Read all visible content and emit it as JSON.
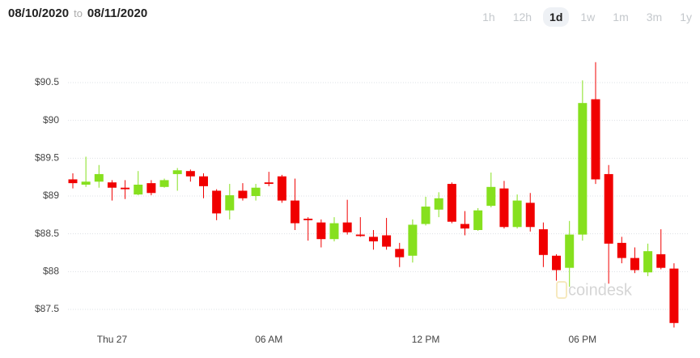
{
  "header": {
    "start_date": "08/10/2020",
    "separator": "to",
    "end_date": "08/11/2020"
  },
  "range_buttons": [
    "1h",
    "12h",
    "1d",
    "1w",
    "1m",
    "3m",
    "1y"
  ],
  "active_range": 2,
  "watermark": "coindesk",
  "chart_data": {
    "type": "candlestick",
    "categories": [
      null,
      null,
      null,
      "Thu 27",
      null,
      null,
      null,
      null,
      null,
      null,
      null,
      null,
      null,
      null,
      null,
      "06 AM",
      null,
      null,
      null,
      null,
      null,
      null,
      null,
      null,
      null,
      null,
      null,
      "12 PM",
      null,
      null,
      null,
      null,
      null,
      null,
      null,
      null,
      null,
      null,
      null,
      "06 PM",
      null,
      null,
      null,
      null,
      null,
      null,
      null
    ],
    "open": [
      89.22,
      89.15,
      89.19,
      89.18,
      89.11,
      89.02,
      89.17,
      89.12,
      89.29,
      89.33,
      89.26,
      89.07,
      88.81,
      89.07,
      89.0,
      89.18,
      89.26,
      88.94,
      88.7,
      88.65,
      88.43,
      88.65,
      88.49,
      88.46,
      88.48,
      88.3,
      88.21,
      88.63,
      88.82,
      89.16,
      88.63,
      88.55,
      88.87,
      89.1,
      88.59,
      88.91,
      88.56,
      88.21,
      88.05,
      88.49,
      90.28,
      89.29,
      88.38,
      88.18,
      87.99,
      88.23,
      88.04
    ],
    "high": [
      89.3,
      89.52,
      89.41,
      89.21,
      89.21,
      89.33,
      89.21,
      89.23,
      89.37,
      89.35,
      89.3,
      89.09,
      89.16,
      89.17,
      89.16,
      89.32,
      89.28,
      89.23,
      88.72,
      88.69,
      88.72,
      88.95,
      88.72,
      88.55,
      88.71,
      88.38,
      88.69,
      88.99,
      89.05,
      89.18,
      88.8,
      88.84,
      89.31,
      89.2,
      89.02,
      89.04,
      88.65,
      88.23,
      88.67,
      90.53,
      90.77,
      89.41,
      88.46,
      88.32,
      88.37,
      88.56,
      88.11
    ],
    "low": [
      89.1,
      89.12,
      89.11,
      88.94,
      88.96,
      89.01,
      89.01,
      89.11,
      89.07,
      89.19,
      88.97,
      88.68,
      88.69,
      88.94,
      88.94,
      89.13,
      88.91,
      88.55,
      88.41,
      88.32,
      88.4,
      88.49,
      88.46,
      88.29,
      88.29,
      88.06,
      88.12,
      88.61,
      88.72,
      88.64,
      88.48,
      88.54,
      88.85,
      88.57,
      88.57,
      88.53,
      88.06,
      87.88,
      87.8,
      88.41,
      89.16,
      87.84,
      88.11,
      87.98,
      87.94,
      88.03,
      87.26
    ],
    "close": [
      89.17,
      89.19,
      89.29,
      89.11,
      89.09,
      89.15,
      89.04,
      89.21,
      89.34,
      89.26,
      89.13,
      88.77,
      89.01,
      88.97,
      89.11,
      89.16,
      88.94,
      88.64,
      88.68,
      88.43,
      88.64,
      88.52,
      88.47,
      88.4,
      88.33,
      88.19,
      88.62,
      88.86,
      88.97,
      88.66,
      88.57,
      88.81,
      89.12,
      88.59,
      88.94,
      88.59,
      88.22,
      88.02,
      88.49,
      90.23,
      89.22,
      88.37,
      88.18,
      88.02,
      88.27,
      88.05,
      87.32
    ],
    "up_color": "#86e01e",
    "down_color": "#f00000",
    "ylim": [
      87.2,
      90.95
    ],
    "yticks": [
      {
        "value": 87.5,
        "label": "$87.5"
      },
      {
        "value": 88,
        "label": "$88"
      },
      {
        "value": 88.5,
        "label": "$88.5"
      },
      {
        "value": 89,
        "label": "$89"
      },
      {
        "value": 89.5,
        "label": "$89.5"
      },
      {
        "value": 90,
        "label": "$90"
      },
      {
        "value": 90.5,
        "label": "$90.5"
      }
    ],
    "grid": true
  }
}
